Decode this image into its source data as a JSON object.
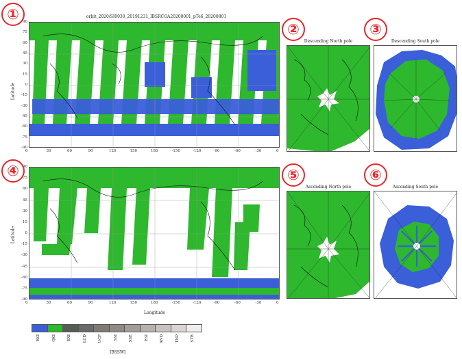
{
  "badges": [
    "①",
    "②",
    "③",
    "④",
    "⑤",
    "⑥"
  ],
  "titles": {
    "top_map": "orbit_2020/SI0030_20191231_IBSRCOA20200001_pTe6_20200801",
    "desc_north": "Descending North pole",
    "desc_south": "Descending South pole",
    "asc_north": "Ascending North pole",
    "asc_south": "Ascending South pole"
  },
  "axes": {
    "ylabel": "Latitude",
    "xlabel": "Longitude",
    "lat_ticks": [
      "90",
      "75",
      "60",
      "45",
      "30",
      "15",
      "0",
      "-15",
      "-30",
      "-45",
      "-60",
      "-75",
      "-90"
    ],
    "lon_ticks": [
      "0",
      "30",
      "60",
      "90",
      "120",
      "150",
      "180",
      "-150",
      "-120",
      "-90",
      "-60",
      "-30",
      "0"
    ]
  },
  "legend": {
    "title": "IBSSWI",
    "items": [
      {
        "label": "EKI",
        "color": "#3a5fd9"
      },
      {
        "label": "QKI",
        "color": "#2db82d"
      },
      {
        "label": "EXI",
        "color": "#555d55"
      },
      {
        "label": "LCD",
        "color": "#6a6a6a"
      },
      {
        "label": "UCP",
        "color": "#7f7a74"
      },
      {
        "label": "SSI",
        "color": "#8e8a86"
      },
      {
        "label": "SSE",
        "color": "#a29d98"
      },
      {
        "label": "ESI",
        "color": "#b5b1ad"
      },
      {
        "label": "AND",
        "color": "#c6c3c0"
      },
      {
        "label": "TNP",
        "color": "#d8d6d4"
      },
      {
        "label": "STR",
        "color": "#efeeed"
      }
    ]
  },
  "colors": {
    "blue": "#3a5fd9",
    "green": "#2db82d",
    "badge": "#e8252a"
  }
}
